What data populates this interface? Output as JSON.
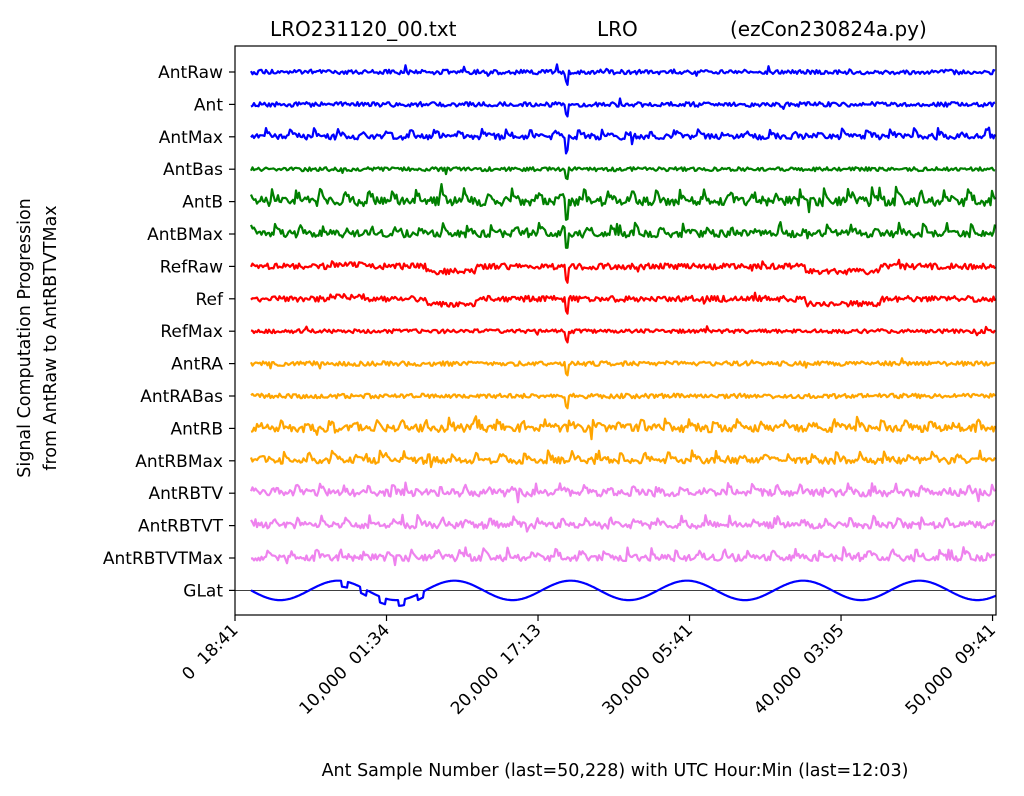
{
  "chart_data": {
    "type": "line",
    "title_left": "LRO231120_00.txt",
    "title_center": "LRO",
    "title_right": "(ezCon230824a.py)",
    "xlabel": "Ant Sample Number (last=50,228) with UTC Hour:Min (last=12:03)",
    "ylabel_line1": "Signal Computation Progression",
    "ylabel_line2": "from AntRaw to AntRBTVTMax",
    "xlim": [
      0,
      50228
    ],
    "x_ticks": [
      {
        "value": 0,
        "label": "0  18:41"
      },
      {
        "value": 10000,
        "label": "10,000  01:34"
      },
      {
        "value": 20000,
        "label": "20,000  17:13"
      },
      {
        "value": 30000,
        "label": "30,000  05:41"
      },
      {
        "value": 40000,
        "label": "40,000  03:05"
      },
      {
        "value": 50000,
        "label": "50,000  09:41"
      }
    ],
    "y_tick_labels": [
      "AntRaw",
      "Ant",
      "AntMax",
      "AntBas",
      "AntB",
      "AntBMax",
      "RefRaw",
      "Ref",
      "RefMax",
      "AntRA",
      "AntRABas",
      "AntRB",
      "AntRBMax",
      "AntRBTV",
      "AntRBTVT",
      "AntRBTVTMax",
      "GLat"
    ],
    "series": [
      {
        "name": "AntRaw",
        "color": "#0000ff",
        "style": "noisy",
        "amp": 0.35
      },
      {
        "name": "Ant",
        "color": "#0000ff",
        "style": "noisy",
        "amp": 0.35
      },
      {
        "name": "AntMax",
        "color": "#0000ff",
        "style": "bumpy",
        "amp": 0.45
      },
      {
        "name": "AntBas",
        "color": "#008000",
        "style": "noisy",
        "amp": 0.3
      },
      {
        "name": "AntB",
        "color": "#008000",
        "style": "bumpy",
        "amp": 0.7
      },
      {
        "name": "AntBMax",
        "color": "#008000",
        "style": "bumpy",
        "amp": 0.55
      },
      {
        "name": "RefRaw",
        "color": "#ff0000",
        "style": "steps",
        "amp": 0.45
      },
      {
        "name": "Ref",
        "color": "#ff0000",
        "style": "steps",
        "amp": 0.45
      },
      {
        "name": "RefMax",
        "color": "#ff0000",
        "style": "noisy",
        "amp": 0.3
      },
      {
        "name": "AntRA",
        "color": "#ffa500",
        "style": "noisy",
        "amp": 0.35
      },
      {
        "name": "AntRABas",
        "color": "#ffa500",
        "style": "noisy",
        "amp": 0.35
      },
      {
        "name": "AntRB",
        "color": "#ffa500",
        "style": "bumpy",
        "amp": 0.6
      },
      {
        "name": "AntRBMax",
        "color": "#ffa500",
        "style": "bumpy",
        "amp": 0.5
      },
      {
        "name": "AntRBTV",
        "color": "#ee82ee",
        "style": "bumpy",
        "amp": 0.55
      },
      {
        "name": "AntRBTVT",
        "color": "#ee82ee",
        "style": "bumpy",
        "amp": 0.5
      },
      {
        "name": "AntRBTVTMax",
        "color": "#ee82ee",
        "style": "bumpy",
        "amp": 0.5
      },
      {
        "name": "GLat",
        "color": "#0000ff",
        "style": "sine",
        "amp": 0.6
      }
    ],
    "glat_baseline": true
  }
}
